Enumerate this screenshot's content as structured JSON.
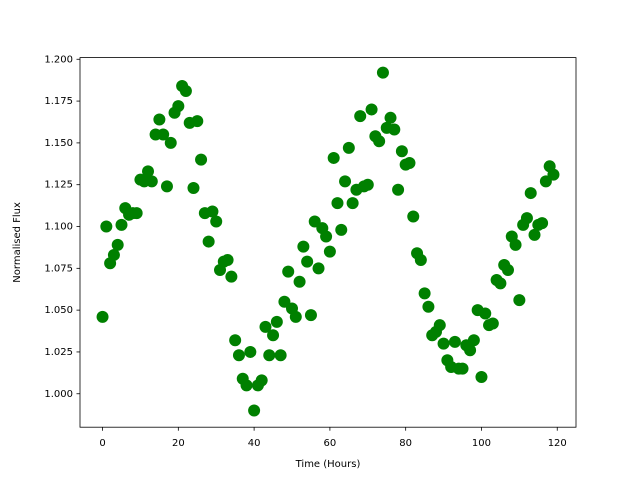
{
  "chart_data": {
    "type": "scatter",
    "x_label": "Time (Hours)",
    "y_label": "Normalised Flux",
    "color": "#008000",
    "x": [
      0,
      1,
      2,
      3,
      4,
      5,
      6,
      7,
      8,
      9,
      10,
      11,
      12,
      13,
      14,
      15,
      16,
      17,
      18,
      19,
      20,
      21,
      22,
      23,
      24,
      25,
      26,
      27,
      28,
      29,
      30,
      31,
      32,
      33,
      34,
      35,
      36,
      37,
      38,
      39,
      40,
      41,
      42,
      43,
      44,
      45,
      46,
      47,
      48,
      49,
      50,
      51,
      52,
      53,
      54,
      55,
      56,
      57,
      58,
      59,
      60,
      61,
      62,
      63,
      64,
      65,
      66,
      67,
      68,
      69,
      70,
      71,
      72,
      73,
      74,
      75,
      76,
      77,
      78,
      79,
      80,
      81,
      82,
      83,
      84,
      85,
      86,
      87,
      88,
      89,
      90,
      91,
      92,
      93,
      94,
      95,
      96,
      97,
      98,
      99,
      100,
      101,
      102,
      103,
      104,
      105,
      106,
      107,
      108,
      109,
      110,
      111,
      112,
      113,
      114,
      115,
      116,
      117,
      118,
      119
    ],
    "values": [
      1.046,
      1.1,
      1.078,
      1.083,
      1.089,
      1.101,
      1.111,
      1.107,
      1.108,
      1.108,
      1.128,
      1.127,
      1.133,
      1.127,
      1.155,
      1.164,
      1.155,
      1.124,
      1.15,
      1.168,
      1.172,
      1.184,
      1.181,
      1.162,
      1.123,
      1.163,
      1.14,
      1.108,
      1.091,
      1.109,
      1.103,
      1.074,
      1.079,
      1.08,
      1.07,
      1.032,
      1.023,
      1.009,
      1.005,
      1.025,
      0.99,
      1.005,
      1.008,
      1.04,
      1.023,
      1.035,
      1.043,
      1.023,
      1.055,
      1.073,
      1.051,
      1.046,
      1.067,
      1.088,
      1.079,
      1.047,
      1.103,
      1.075,
      1.099,
      1.094,
      1.085,
      1.141,
      1.114,
      1.098,
      1.127,
      1.147,
      1.114,
      1.122,
      1.166,
      1.124,
      1.125,
      1.17,
      1.154,
      1.151,
      1.192,
      1.159,
      1.165,
      1.158,
      1.122,
      1.145,
      1.137,
      1.138,
      1.106,
      1.084,
      1.08,
      1.06,
      1.052,
      1.035,
      1.037,
      1.041,
      1.03,
      1.02,
      1.016,
      1.031,
      1.015,
      1.015,
      1.029,
      1.026,
      1.032,
      1.05,
      1.01,
      1.048,
      1.041,
      1.042,
      1.068,
      1.066,
      1.077,
      1.074,
      1.094,
      1.089,
      1.056,
      1.101,
      1.105,
      1.12,
      1.095,
      1.101,
      1.102,
      1.127,
      1.136,
      1.131
    ],
    "xlim": [
      -5.95,
      124.95
    ],
    "xticks": [
      0,
      20,
      40,
      60,
      80,
      100,
      120
    ],
    "ylim": [
      0.98,
      1.201
    ],
    "yticks": [
      {
        "value": 1,
        "label": "1.000"
      },
      1.025,
      {
        "value": 1.05,
        "label": "1.050"
      },
      1.075,
      {
        "value": 1.1,
        "label": "1.100"
      },
      1.125,
      {
        "value": 1.15,
        "label": "1.150"
      },
      1.175,
      {
        "value": 1.2,
        "label": "1.200"
      }
    ]
  }
}
